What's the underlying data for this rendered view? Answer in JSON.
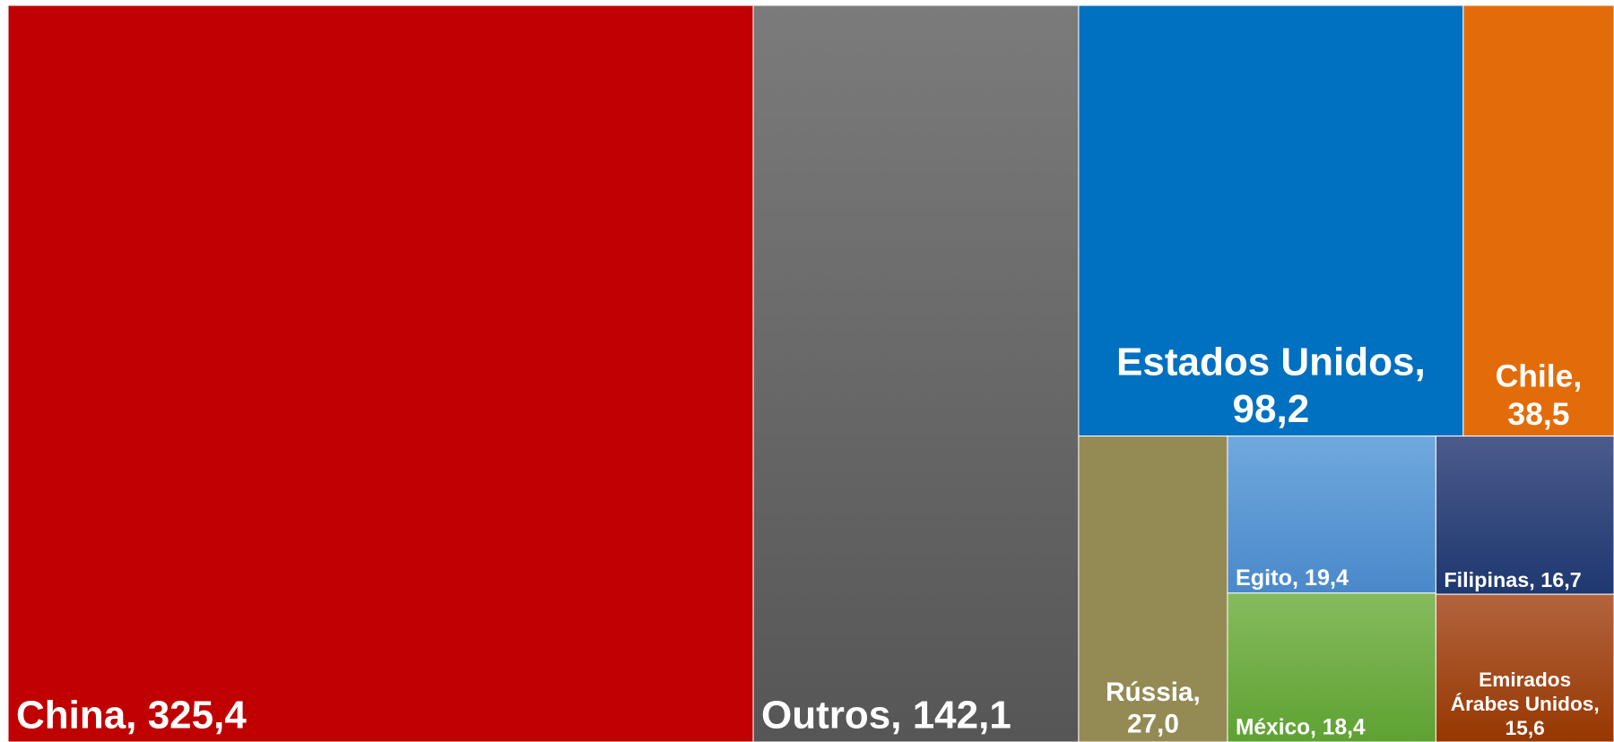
{
  "chart_data": {
    "type": "treemap",
    "categories": [
      "China",
      "Outros",
      "Estados Unidos",
      "Chile",
      "Rússia",
      "Egito",
      "México",
      "Filipinas",
      "Emirados Árabes Unidos"
    ],
    "values": [
      325.4,
      142.1,
      98.2,
      38.5,
      27.0,
      19.4,
      18.4,
      16.7,
      15.6
    ],
    "value_labels": [
      "325,4",
      "142,1",
      "98,2",
      "38,5",
      "27,0",
      "19,4",
      "18,4",
      "16,7",
      "15,6"
    ],
    "colors": [
      "#c00000",
      [
        "#7b7b7b",
        "#565656"
      ],
      "#0070c0",
      "#e36c0a",
      "#948a54",
      [
        "#70a9de",
        "#4a88ca"
      ],
      [
        "#86bb5e",
        "#5ea232"
      ],
      [
        "#4b5b8c",
        "#1e3870"
      ],
      [
        "#b2643f",
        "#973700"
      ]
    ]
  }
}
